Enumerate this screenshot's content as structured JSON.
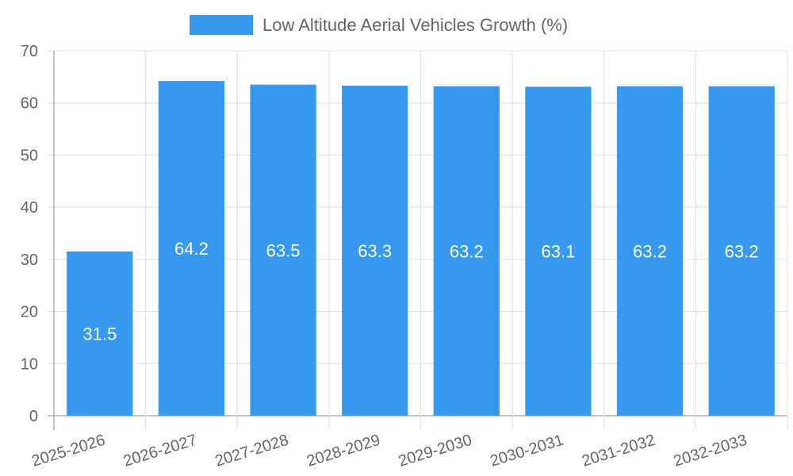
{
  "chart_data": {
    "type": "bar",
    "title": "",
    "xlabel": "",
    "ylabel": "",
    "categories": [
      "2025-2026",
      "2026-2027",
      "2027-2028",
      "2028-2029",
      "2029-2030",
      "2030-2031",
      "2031-2032",
      "2032-2033"
    ],
    "series": [
      {
        "name": "Low Altitude Aerial Vehicles Growth (%)",
        "values": [
          31.5,
          64.2,
          63.5,
          63.3,
          63.2,
          63.1,
          63.2,
          63.2
        ],
        "color": "#3799ee",
        "show_data_labels": true
      }
    ],
    "ylim": [
      0,
      70
    ],
    "yticks": [
      0,
      10,
      20,
      30,
      40,
      50,
      60,
      70
    ],
    "grid": true,
    "legend": "top-center"
  },
  "legend": {
    "label": "Low Altitude Aerial Vehicles Growth (%)",
    "color": "#3799ee"
  },
  "colors": {
    "grid": "#e3e3e3",
    "axis": "#9e9e9e",
    "text": "#666666",
    "label_text": "#ffffff"
  }
}
